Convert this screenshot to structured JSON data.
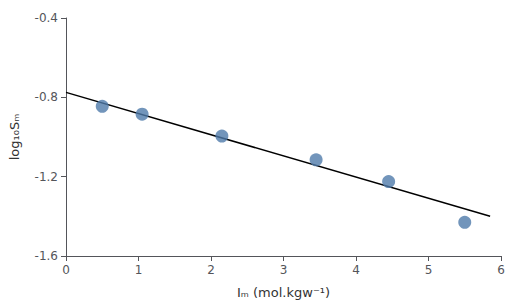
{
  "chart_data": {
    "type": "scatter",
    "xlabel": "Iₘ (mol.kgw⁻¹)",
    "ylabel": "log₁₀Sₘ",
    "series": [
      {
        "type": "scatter",
        "color": "#4f7aaa",
        "marker": "circle",
        "x": [
          0.5,
          1.05,
          2.15,
          3.45,
          4.45,
          5.5
        ],
        "values": [
          -0.845,
          -0.885,
          -0.995,
          -1.115,
          -1.225,
          -1.43
        ]
      },
      {
        "type": "line",
        "color": "black",
        "line_style": "solid",
        "x": [
          0.0,
          5.85
        ],
        "values": [
          -0.775,
          -1.4
        ]
      }
    ],
    "xlim": [
      0,
      6
    ],
    "ylim": [
      -1.6,
      -0.4
    ],
    "xticks": [
      0,
      1,
      2,
      3,
      4,
      5,
      6
    ],
    "yticks": [
      -1.6,
      -1.2,
      -0.8,
      -0.4
    ],
    "grid": false
  }
}
